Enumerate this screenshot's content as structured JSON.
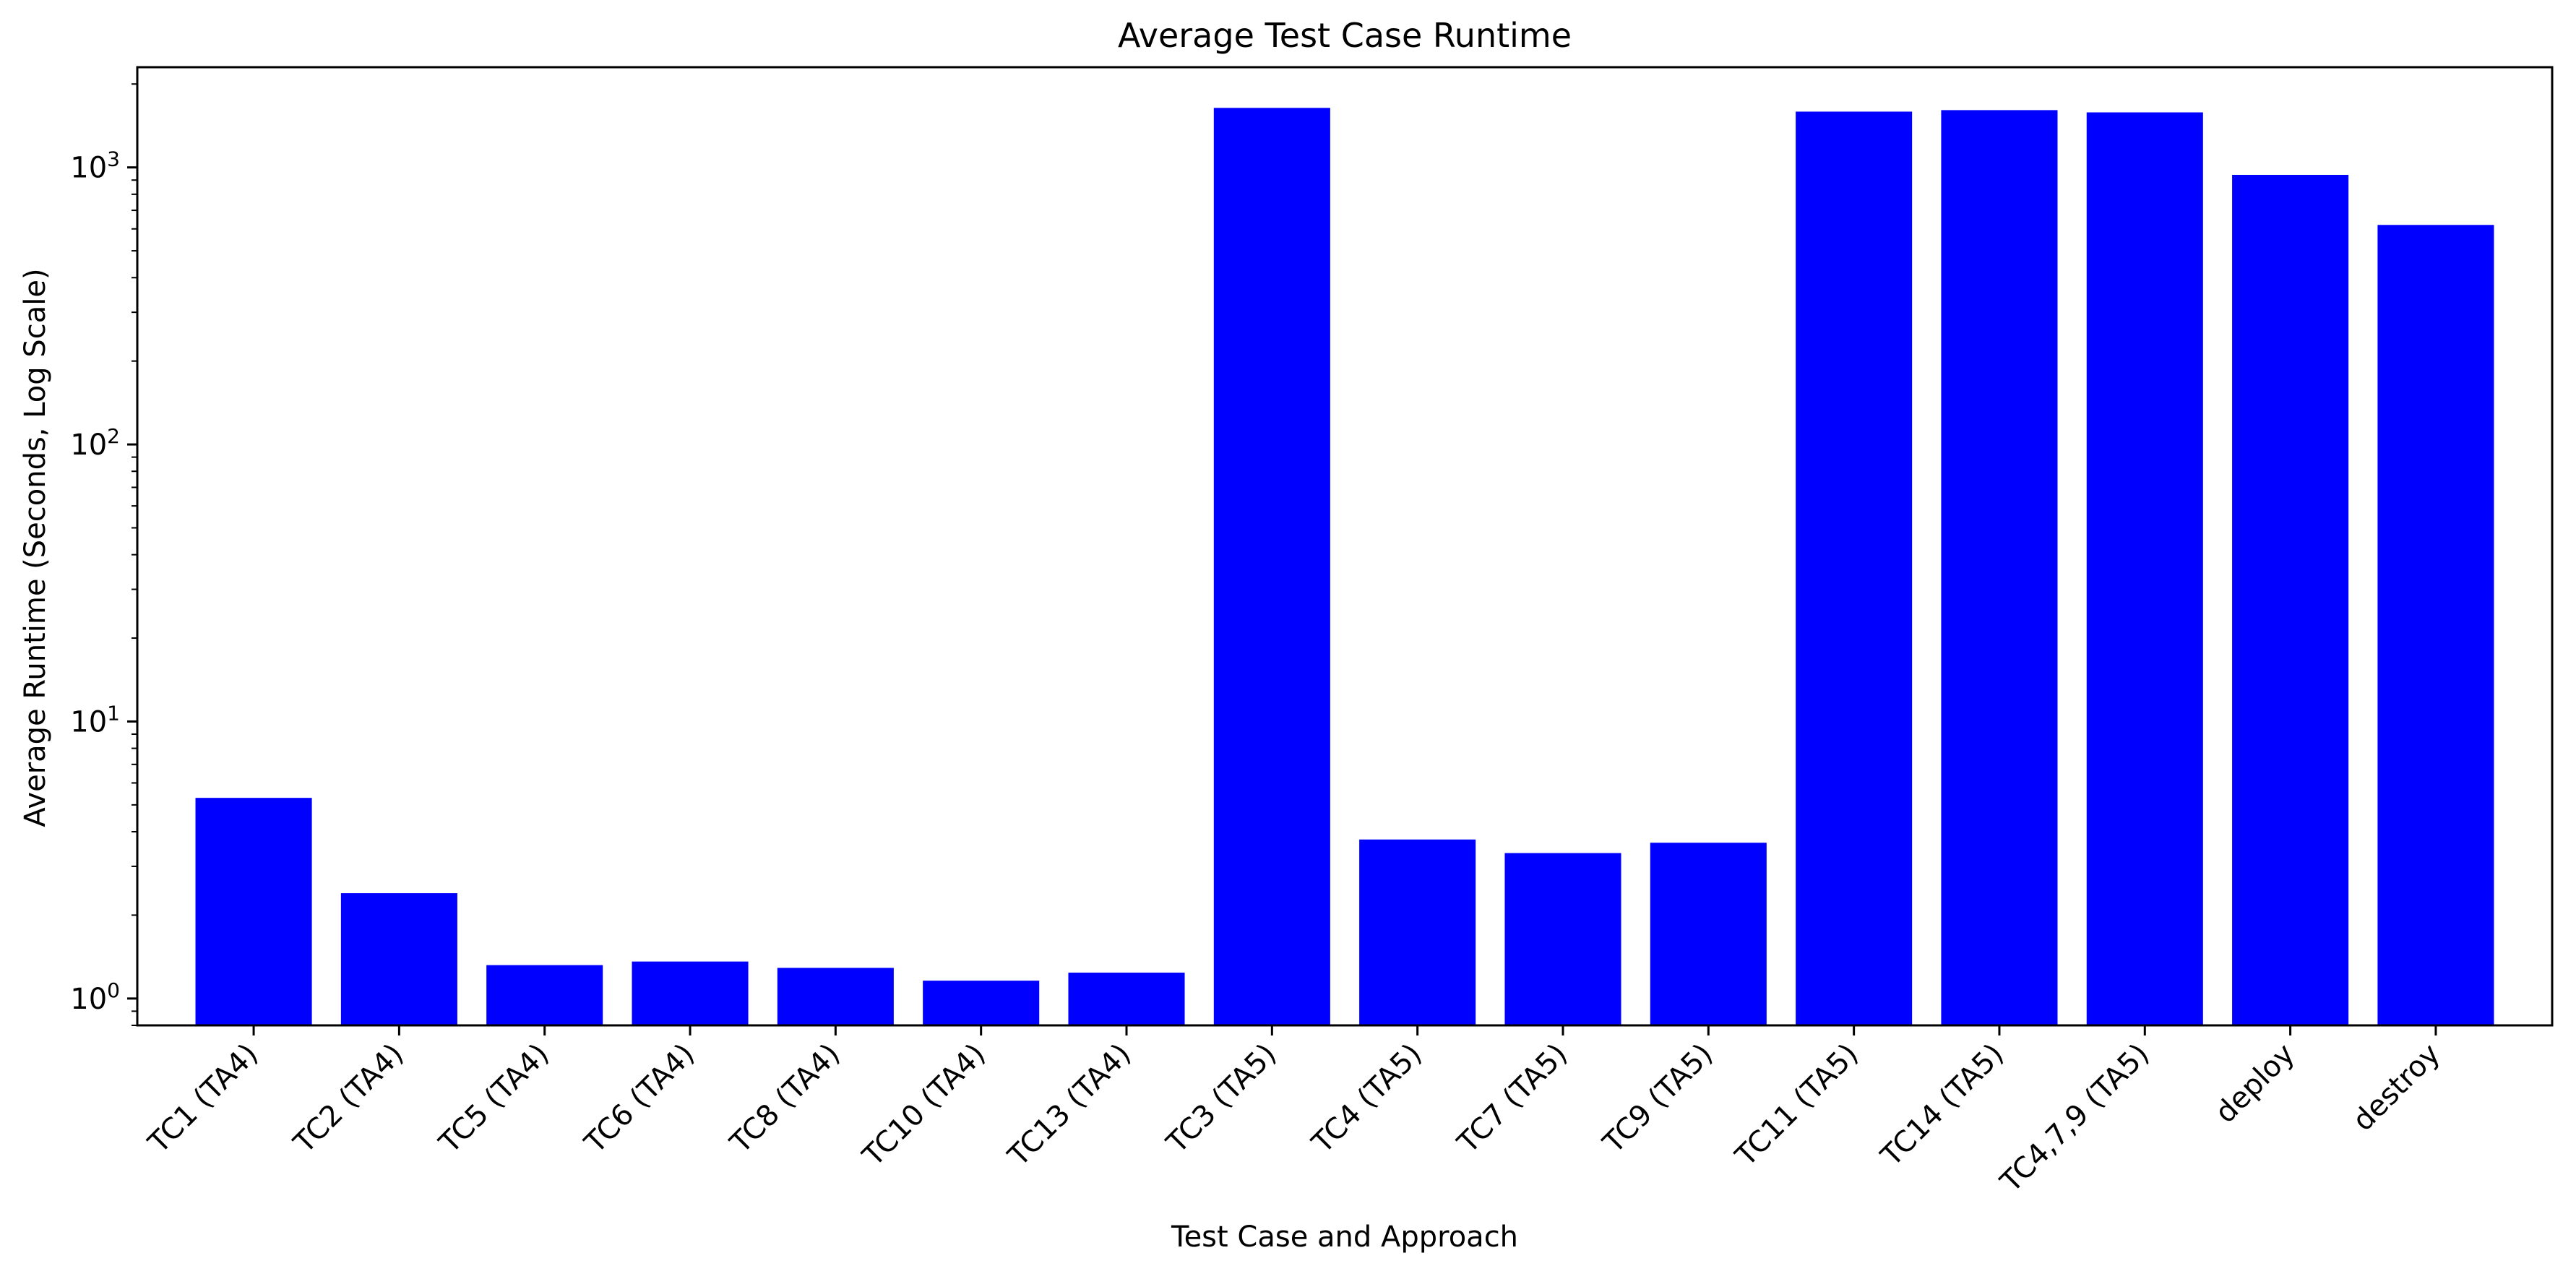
{
  "chart_data": {
    "type": "bar",
    "title": "Average Test Case Runtime",
    "xlabel": "Test Case and Approach",
    "ylabel": "Average Runtime (Seconds, Log Scale)",
    "yscale": "log",
    "ylim": [
      0.8,
      2300
    ],
    "y_ticks": [
      {
        "base": "10",
        "exp": "0",
        "value": 1
      },
      {
        "base": "10",
        "exp": "1",
        "value": 10
      },
      {
        "base": "10",
        "exp": "2",
        "value": 100
      },
      {
        "base": "10",
        "exp": "3",
        "value": 1000
      }
    ],
    "grid": false,
    "legend": "none",
    "bar_color": "#0000ff",
    "categories": [
      "TC1 (TA4)",
      "TC2 (TA4)",
      "TC5 (TA4)",
      "TC6 (TA4)",
      "TC8 (TA4)",
      "TC10 (TA4)",
      "TC13 (TA4)",
      "TC3 (TA5)",
      "TC4 (TA5)",
      "TC7 (TA5)",
      "TC9 (TA5)",
      "TC11 (TA5)",
      "TC14 (TA5)",
      "TC4,7,9 (TA5)",
      "deploy",
      "destroy"
    ],
    "values": [
      5.3,
      2.4,
      1.32,
      1.36,
      1.29,
      1.16,
      1.24,
      1640,
      3.75,
      3.35,
      3.65,
      1590,
      1610,
      1580,
      940,
      620
    ]
  }
}
